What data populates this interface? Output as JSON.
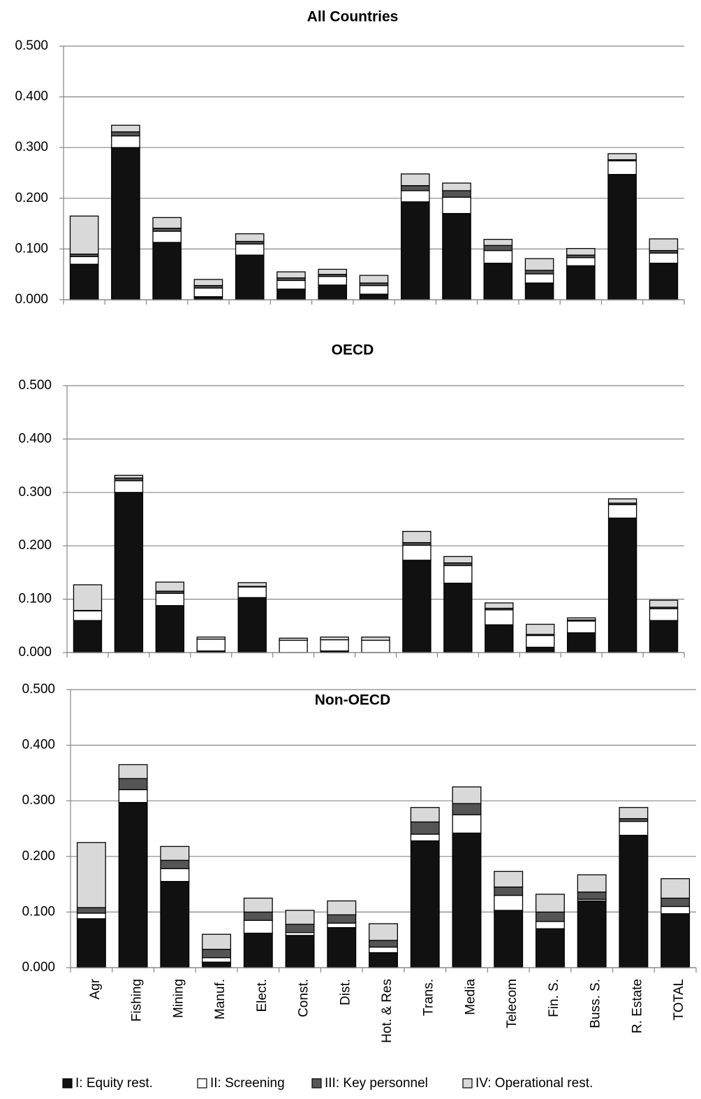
{
  "chart_data": [
    {
      "type": "bar",
      "stacked": true,
      "title": "All Countries",
      "categories": [
        null,
        null,
        null,
        null,
        null,
        null,
        null,
        null,
        null,
        null,
        null,
        null,
        null,
        null,
        null
      ],
      "series": [
        {
          "color": "#111111",
          "values": [
            0.07,
            0.3,
            0.113,
            0.006,
            0.088,
            0.021,
            0.029,
            0.011,
            0.193,
            0.17,
            0.072,
            0.033,
            0.067,
            0.247,
            0.072
          ]
        },
        {
          "color": "#ffffff",
          "values": [
            0.015,
            0.023,
            0.022,
            0.017,
            0.022,
            0.017,
            0.017,
            0.017,
            0.022,
            0.032,
            0.025,
            0.018,
            0.016,
            0.027,
            0.02
          ]
        },
        {
          "color": "#555555",
          "values": [
            0.005,
            0.008,
            0.006,
            0.005,
            0.005,
            0.005,
            0.004,
            0.005,
            0.01,
            0.013,
            0.01,
            0.007,
            0.005,
            0.002,
            0.005
          ]
        },
        {
          "color": "#d9d9d9",
          "values": [
            0.075,
            0.013,
            0.021,
            0.012,
            0.015,
            0.012,
            0.01,
            0.015,
            0.023,
            0.015,
            0.012,
            0.023,
            0.013,
            0.012,
            0.023
          ]
        }
      ],
      "ylim": [
        0,
        0.5
      ],
      "yticks": [
        {
          "value": 0,
          "label": "0.000"
        },
        {
          "value": 0.1,
          "label": "0.100"
        },
        {
          "value": 0.2,
          "label": "0.200"
        },
        {
          "value": 0.3,
          "label": "0.300"
        },
        {
          "value": 0.4,
          "label": "0.400"
        },
        {
          "value": 0.5,
          "label": "0.500"
        }
      ],
      "grid": true
    },
    {
      "type": "bar",
      "stacked": true,
      "title": "OECD",
      "categories": [
        null,
        null,
        null,
        null,
        null,
        null,
        null,
        null,
        null,
        null,
        null,
        null,
        null,
        null,
        null
      ],
      "series": [
        {
          "color": "#111111",
          "values": [
            0.06,
            0.3,
            0.088,
            0.003,
            0.103,
            0.0,
            0.003,
            0.0,
            0.173,
            0.13,
            0.052,
            0.01,
            0.037,
            0.252,
            0.06
          ]
        },
        {
          "color": "#ffffff",
          "values": [
            0.018,
            0.022,
            0.023,
            0.022,
            0.02,
            0.023,
            0.021,
            0.023,
            0.028,
            0.033,
            0.028,
            0.022,
            0.022,
            0.025,
            0.022
          ]
        },
        {
          "color": "#555555",
          "values": [
            0.001,
            0.005,
            0.004,
            0.0,
            0.001,
            0.0,
            0.0,
            0.0,
            0.005,
            0.005,
            0.003,
            0.002,
            0.002,
            0.003,
            0.003
          ]
        },
        {
          "color": "#d9d9d9",
          "values": [
            0.048,
            0.005,
            0.017,
            0.004,
            0.007,
            0.004,
            0.005,
            0.006,
            0.021,
            0.012,
            0.01,
            0.019,
            0.004,
            0.008,
            0.013
          ]
        }
      ],
      "ylim": [
        0,
        0.5
      ],
      "yticks": [
        {
          "value": 0,
          "label": "0.000"
        },
        {
          "value": 0.1,
          "label": "0.100"
        },
        {
          "value": 0.2,
          "label": "0.200"
        },
        {
          "value": 0.3,
          "label": "0.300"
        },
        {
          "value": 0.4,
          "label": "0.400"
        },
        {
          "value": 0.5,
          "label": "0.500"
        }
      ],
      "grid": true
    },
    {
      "type": "bar",
      "stacked": true,
      "title": "Non-OECD",
      "categories": [
        "Agr",
        "Fishing",
        "Mining",
        "Manuf.",
        "Elect.",
        "Const.",
        "Dist.",
        "Hot. & Res",
        "Trans.",
        "Media",
        "Telecom",
        "Fin. S.",
        "Buss. S.",
        "R. Estate",
        "TOTAL"
      ],
      "series": [
        {
          "name": "I: Equity rest.",
          "color": "#111111",
          "values": [
            0.088,
            0.297,
            0.155,
            0.01,
            0.062,
            0.058,
            0.072,
            0.027,
            0.228,
            0.242,
            0.103,
            0.07,
            0.12,
            0.238,
            0.097
          ]
        },
        {
          "name": "II: Screening",
          "color": "#ffffff",
          "values": [
            0.01,
            0.023,
            0.023,
            0.008,
            0.023,
            0.005,
            0.008,
            0.01,
            0.012,
            0.033,
            0.027,
            0.013,
            0.003,
            0.025,
            0.013
          ]
        },
        {
          "name": "III: Key personnel",
          "color": "#555555",
          "values": [
            0.01,
            0.02,
            0.015,
            0.015,
            0.015,
            0.015,
            0.015,
            0.012,
            0.022,
            0.02,
            0.015,
            0.017,
            0.013,
            0.005,
            0.015
          ]
        },
        {
          "name": "IV: Operational rest.",
          "color": "#d9d9d9",
          "values": [
            0.117,
            0.025,
            0.025,
            0.027,
            0.025,
            0.025,
            0.025,
            0.03,
            0.026,
            0.03,
            0.028,
            0.032,
            0.031,
            0.02,
            0.035
          ]
        }
      ],
      "ylim": [
        0,
        0.5
      ],
      "yticks": [
        {
          "value": 0,
          "label": "0.000"
        },
        {
          "value": 0.1,
          "label": "0.100"
        },
        {
          "value": 0.2,
          "label": "0.200"
        },
        {
          "value": 0.3,
          "label": "0.300"
        },
        {
          "value": 0.4,
          "label": "0.400"
        },
        {
          "value": 0.5,
          "label": "0.500"
        }
      ],
      "grid": true,
      "legend": "bottom"
    }
  ]
}
